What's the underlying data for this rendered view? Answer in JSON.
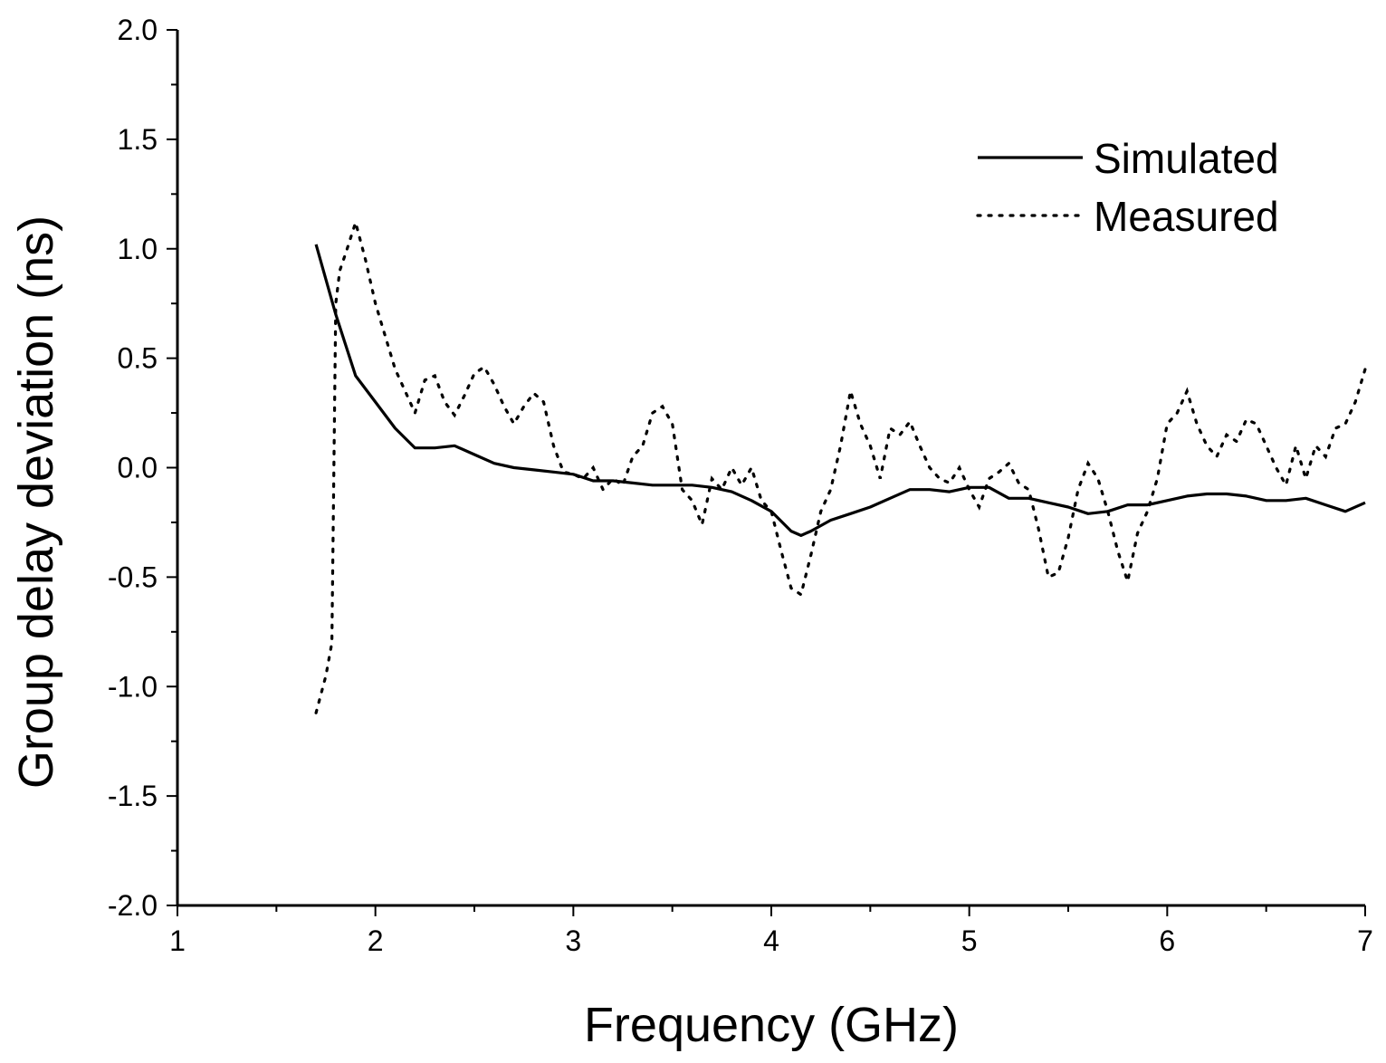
{
  "chart_data": {
    "type": "line",
    "xlabel": "Frequency (GHz)",
    "ylabel": "Group delay deviation (ns)",
    "xlim": [
      1,
      7
    ],
    "ylim": [
      -2.0,
      2.0
    ],
    "x_ticks": [
      "1",
      "2",
      "3",
      "4",
      "5",
      "6",
      "7"
    ],
    "y_ticks": [
      "2.0",
      "1.5",
      "1.0",
      "0.5",
      "0.0",
      "-0.5",
      "-1.0",
      "-1.5",
      "-2.0"
    ],
    "legend_position": "top-right",
    "grid": false,
    "series": [
      {
        "name": "Simulated",
        "style": "solid",
        "x": [
          1.7,
          1.8,
          1.9,
          2.0,
          2.1,
          2.2,
          2.3,
          2.4,
          2.5,
          2.6,
          2.7,
          2.8,
          2.9,
          3.0,
          3.1,
          3.2,
          3.3,
          3.4,
          3.5,
          3.6,
          3.7,
          3.8,
          3.9,
          4.0,
          4.1,
          4.15,
          4.2,
          4.3,
          4.4,
          4.5,
          4.6,
          4.7,
          4.8,
          4.9,
          5.0,
          5.1,
          5.2,
          5.3,
          5.4,
          5.5,
          5.6,
          5.7,
          5.8,
          5.9,
          6.0,
          6.1,
          6.2,
          6.3,
          6.4,
          6.5,
          6.6,
          6.7,
          6.8,
          6.9,
          7.0
        ],
        "y": [
          1.02,
          0.7,
          0.42,
          0.3,
          0.18,
          0.09,
          0.09,
          0.1,
          0.06,
          0.02,
          0.0,
          -0.01,
          -0.02,
          -0.03,
          -0.06,
          -0.06,
          -0.07,
          -0.08,
          -0.08,
          -0.08,
          -0.09,
          -0.11,
          -0.15,
          -0.2,
          -0.29,
          -0.31,
          -0.29,
          -0.24,
          -0.21,
          -0.18,
          -0.14,
          -0.1,
          -0.1,
          -0.11,
          -0.09,
          -0.09,
          -0.14,
          -0.14,
          -0.16,
          -0.18,
          -0.21,
          -0.2,
          -0.17,
          -0.17,
          -0.15,
          -0.13,
          -0.12,
          -0.12,
          -0.13,
          -0.15,
          -0.15,
          -0.14,
          -0.17,
          -0.2,
          -0.16
        ]
      },
      {
        "name": "Measured",
        "style": "dotted",
        "x": [
          1.7,
          1.75,
          1.78,
          1.8,
          1.82,
          1.85,
          1.9,
          1.95,
          2.0,
          2.05,
          2.1,
          2.15,
          2.2,
          2.25,
          2.3,
          2.35,
          2.4,
          2.45,
          2.5,
          2.55,
          2.6,
          2.65,
          2.7,
          2.75,
          2.8,
          2.85,
          2.9,
          2.95,
          3.0,
          3.05,
          3.1,
          3.15,
          3.2,
          3.25,
          3.3,
          3.35,
          3.4,
          3.45,
          3.5,
          3.55,
          3.6,
          3.65,
          3.7,
          3.75,
          3.8,
          3.85,
          3.9,
          3.95,
          4.0,
          4.05,
          4.1,
          4.15,
          4.2,
          4.25,
          4.3,
          4.35,
          4.4,
          4.45,
          4.5,
          4.55,
          4.6,
          4.65,
          4.7,
          4.75,
          4.8,
          4.85,
          4.9,
          4.95,
          5.0,
          5.05,
          5.1,
          5.15,
          5.2,
          5.25,
          5.3,
          5.35,
          5.4,
          5.45,
          5.5,
          5.55,
          5.6,
          5.65,
          5.7,
          5.75,
          5.8,
          5.85,
          5.9,
          5.95,
          6.0,
          6.05,
          6.1,
          6.15,
          6.2,
          6.25,
          6.3,
          6.35,
          6.4,
          6.45,
          6.5,
          6.55,
          6.6,
          6.65,
          6.7,
          6.75,
          6.8,
          6.85,
          6.9,
          6.95,
          7.0
        ],
        "y": [
          -1.12,
          -0.95,
          -0.8,
          0.75,
          0.9,
          0.98,
          1.12,
          0.95,
          0.75,
          0.6,
          0.45,
          0.35,
          0.25,
          0.4,
          0.42,
          0.3,
          0.24,
          0.33,
          0.43,
          0.46,
          0.38,
          0.28,
          0.2,
          0.28,
          0.34,
          0.3,
          0.1,
          -0.02,
          -0.03,
          -0.05,
          0.0,
          -0.1,
          -0.05,
          -0.08,
          0.05,
          0.1,
          0.25,
          0.28,
          0.2,
          -0.1,
          -0.15,
          -0.26,
          -0.05,
          -0.1,
          0.0,
          -0.08,
          0.0,
          -0.15,
          -0.2,
          -0.38,
          -0.55,
          -0.58,
          -0.4,
          -0.2,
          -0.1,
          0.1,
          0.35,
          0.2,
          0.1,
          -0.05,
          0.18,
          0.15,
          0.21,
          0.1,
          0.0,
          -0.05,
          -0.07,
          0.0,
          -0.1,
          -0.18,
          -0.05,
          -0.02,
          0.02,
          -0.07,
          -0.1,
          -0.28,
          -0.5,
          -0.48,
          -0.32,
          -0.1,
          0.02,
          -0.05,
          -0.2,
          -0.38,
          -0.52,
          -0.3,
          -0.2,
          -0.05,
          0.2,
          0.25,
          0.35,
          0.2,
          0.1,
          0.05,
          0.15,
          0.12,
          0.22,
          0.2,
          0.1,
          0.0,
          -0.08,
          0.1,
          -0.05,
          0.1,
          0.05,
          0.18,
          0.2,
          0.3,
          0.45
        ]
      }
    ]
  }
}
